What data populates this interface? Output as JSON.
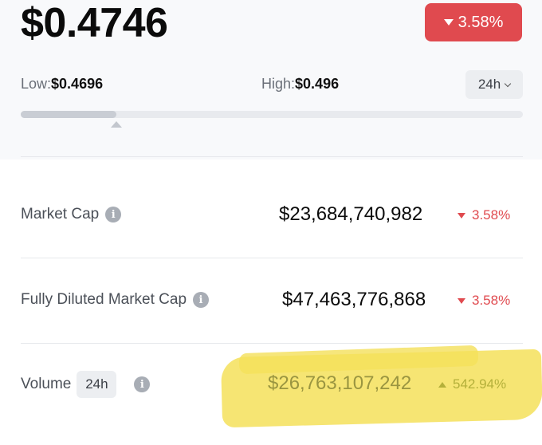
{
  "price": "$0.4746",
  "change": {
    "value": "3.58%",
    "direction": "down",
    "color": "#e04a4f"
  },
  "range": {
    "low_label": "Low:",
    "low_value": "$0.4696",
    "high_label": "High:",
    "high_value": "$0.496",
    "period": "24h",
    "position_fraction": 0.19
  },
  "stats": [
    {
      "label": "Market Cap",
      "value": "$23,684,740,982",
      "change": "3.58%",
      "direction": "down"
    },
    {
      "label": "Fully Diluted Market Cap",
      "value": "$47,463,776,868",
      "change": "3.58%",
      "direction": "down"
    },
    {
      "label": "Volume",
      "chip": "24h",
      "value": "$26,763,107,242",
      "change": "542.94%",
      "direction": "up"
    }
  ],
  "icons": {
    "info": "info-icon",
    "dropdown": "chevron-down-icon",
    "down": "triangle-down-icon",
    "up": "triangle-up-icon"
  },
  "colors": {
    "negative": "#e04a4f",
    "highlight": "#f4e05a"
  }
}
